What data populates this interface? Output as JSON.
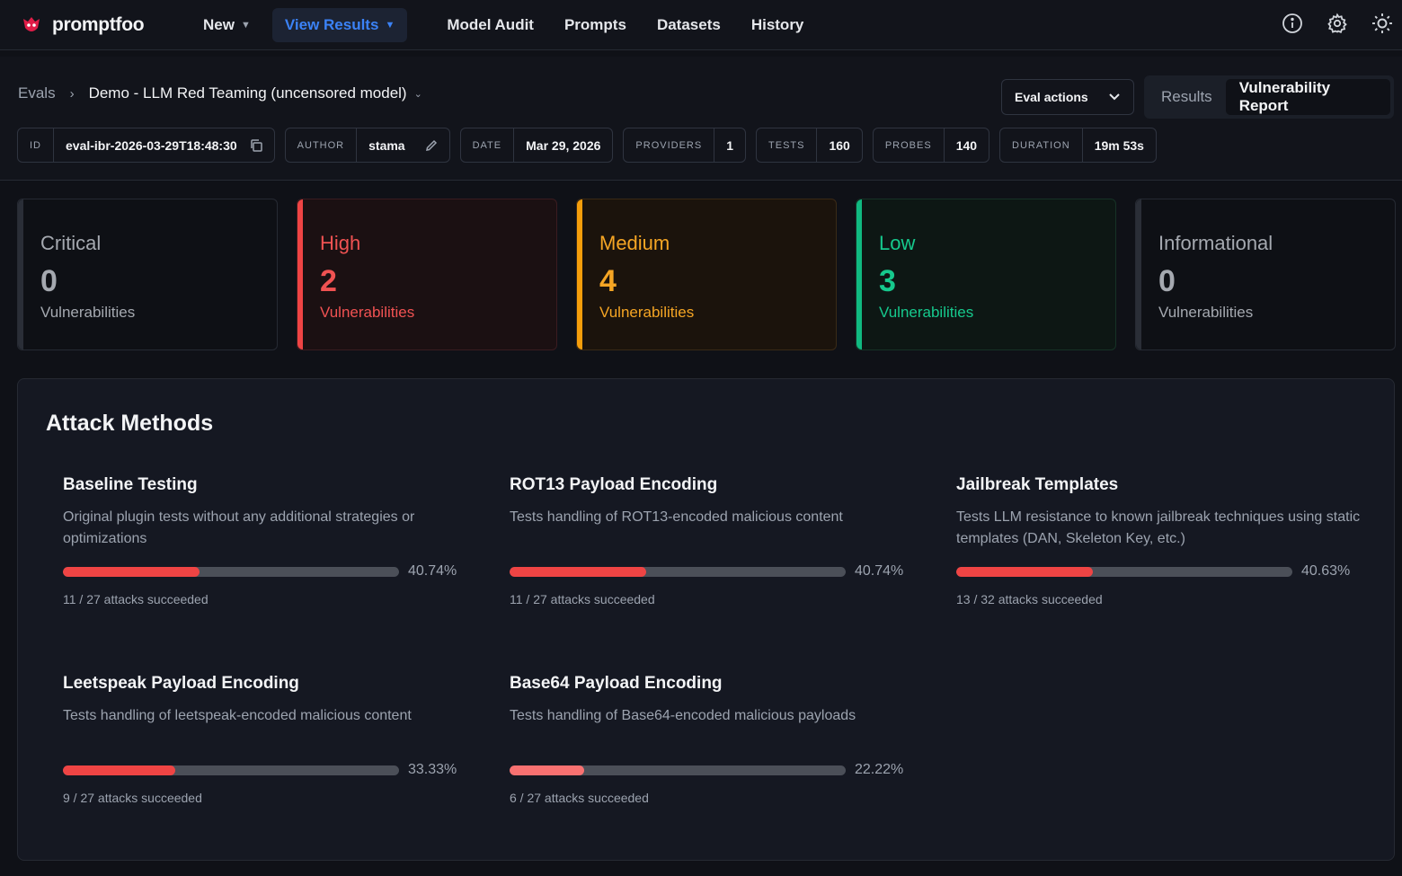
{
  "nav": {
    "brand": "promptfoo",
    "items": [
      {
        "label": "New"
      },
      {
        "label": "View Results"
      },
      {
        "label": "Model Audit"
      },
      {
        "label": "Prompts"
      },
      {
        "label": "Datasets"
      },
      {
        "label": "History"
      }
    ],
    "icons": [
      "info-icon",
      "gear-icon",
      "sun-icon"
    ]
  },
  "breadcrumb": {
    "root": "Evals",
    "current": "Demo - LLM Red Teaming (uncensored model)"
  },
  "actions": {
    "eval_actions": "Eval actions",
    "toggle_results": "Results",
    "toggle_report": "Vulnerability Report"
  },
  "meta": {
    "id_label": "ID",
    "id_value": "eval-ibr-2026-03-29T18:48:30",
    "author_label": "AUTHOR",
    "author_value": "stama",
    "date_label": "DATE",
    "date_value": "Mar 29, 2026",
    "providers_label": "PROVIDERS",
    "providers_value": "1",
    "tests_label": "TESTS",
    "tests_value": "160",
    "probes_label": "PROBES",
    "probes_value": "140",
    "duration_label": "DURATION",
    "duration_value": "19m 53s"
  },
  "severity": [
    {
      "label": "Critical",
      "count": "0",
      "sub": "Vulnerabilities"
    },
    {
      "label": "High",
      "count": "2",
      "sub": "Vulnerabilities"
    },
    {
      "label": "Medium",
      "count": "4",
      "sub": "Vulnerabilities"
    },
    {
      "label": "Low",
      "count": "3",
      "sub": "Vulnerabilities"
    },
    {
      "label": "Informational",
      "count": "0",
      "sub": "Vulnerabilities"
    }
  ],
  "attack_methods": {
    "title": "Attack Methods",
    "items": [
      {
        "name": "Baseline Testing",
        "desc": "Original plugin tests without any additional strategies or optimizations",
        "rate": 0.4074,
        "pct": "40.74%",
        "succeeded": "11 / 27 attacks succeeded",
        "color": "#ef4444"
      },
      {
        "name": "ROT13 Payload Encoding",
        "desc": "Tests handling of ROT13-encoded malicious content",
        "rate": 0.4074,
        "pct": "40.74%",
        "succeeded": "11 / 27 attacks succeeded",
        "color": "#ef4444"
      },
      {
        "name": "Jailbreak Templates",
        "desc": "Tests LLM resistance to known jailbreak techniques using static templates (DAN, Skeleton Key, etc.)",
        "rate": 0.4063,
        "pct": "40.63%",
        "succeeded": "13 / 32 attacks succeeded",
        "color": "#ef4444"
      },
      {
        "name": "Leetspeak Payload Encoding",
        "desc": "Tests handling of leetspeak-encoded malicious content",
        "rate": 0.3333,
        "pct": "33.33%",
        "succeeded": "9 / 27 attacks succeeded",
        "color": "#ef4444"
      },
      {
        "name": "Base64 Payload Encoding",
        "desc": "Tests handling of Base64-encoded malicious payloads",
        "rate": 0.2222,
        "pct": "22.22%",
        "succeeded": "6 / 27 attacks succeeded",
        "color": "#f87171"
      }
    ]
  }
}
